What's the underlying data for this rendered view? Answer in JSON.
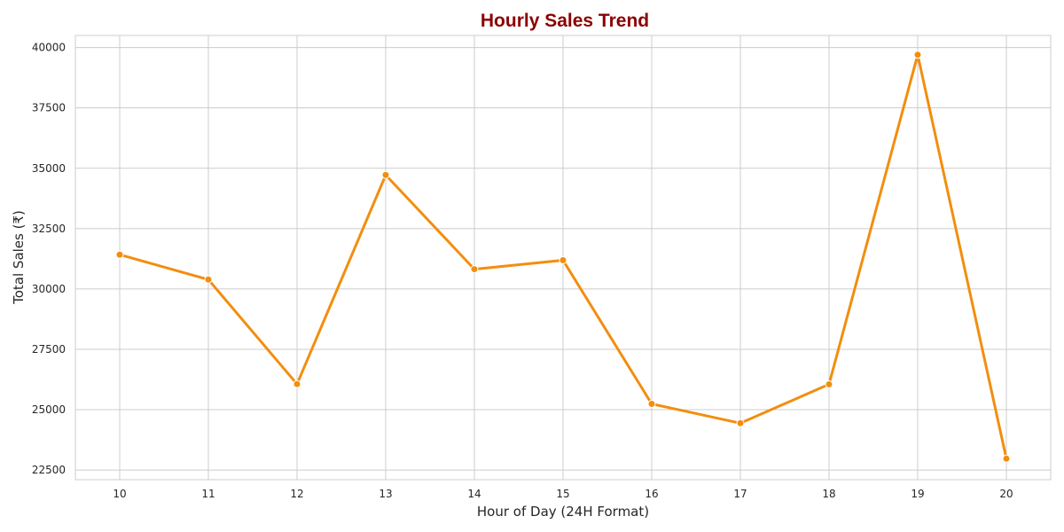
{
  "chart_data": {
    "type": "line",
    "title": "Hourly Sales Trend",
    "xlabel": "Hour of Day (24H Format)",
    "ylabel": "Total Sales (₹)",
    "x": [
      10,
      11,
      12,
      13,
      14,
      15,
      16,
      17,
      18,
      19,
      20
    ],
    "y": [
      31420,
      30390,
      26060,
      34720,
      30820,
      31190,
      25240,
      24440,
      26050,
      39700,
      22970
    ],
    "xlim": [
      9.5,
      20.5
    ],
    "ylim": [
      22100,
      40500
    ],
    "yticks": [
      22500,
      25000,
      27500,
      30000,
      32500,
      35000,
      37500,
      40000
    ],
    "grid": true,
    "colors": {
      "line": "#f28e0f",
      "marker": "#f28e0f",
      "title": "#8b0000"
    }
  }
}
